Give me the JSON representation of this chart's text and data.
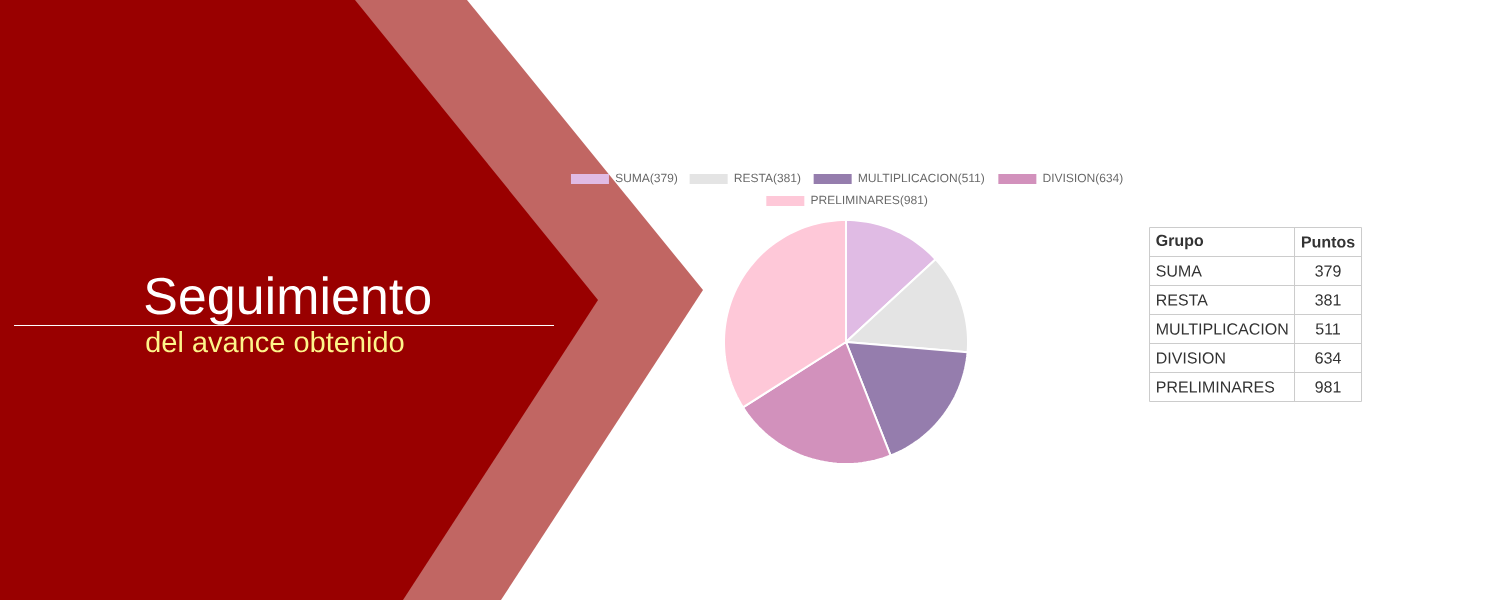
{
  "chart_data": [
    {
      "type": "pie",
      "title": "Seguimiento",
      "subtitle": "del avance obtenido",
      "categories": [
        "SUMA",
        "RESTA",
        "MULTIPLICACION",
        "DIVISION",
        "PRELIMINARES"
      ],
      "values": [
        379,
        381,
        511,
        634,
        981
      ],
      "value_labels": [
        "(379)",
        "(381)",
        "(511)",
        "(634)",
        "(981)"
      ],
      "colors": [
        "#e0bbe4",
        "#e4e4e4",
        "#957dad",
        "#d291bc",
        "#fec8d8"
      ],
      "legend": "top"
    },
    {
      "type": "other",
      "xlabel": "Grupo",
      "ylabel": "Puntos",
      "categories": [
        "SUMA",
        "RESTA",
        "MULTIPLICACION",
        "DIVISION",
        "PRELIMINARES"
      ],
      "values": [
        379,
        381,
        511,
        634,
        981
      ],
      "data_labels": true
    }
  ]
}
